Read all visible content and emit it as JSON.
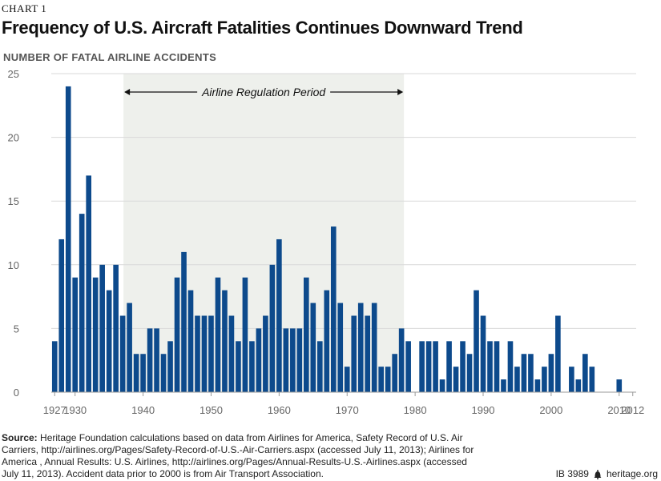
{
  "chart_label": "CHART 1",
  "title": "Frequency of U.S. Aircraft Fatalities Continues Downward Trend",
  "subtitle": "NUMBER OF FATAL AIRLINE ACCIDENTS",
  "source_label": "Source:",
  "source_text": "Heritage Foundation calculations based on data from Airlines for America, Safety Record of U.S. Air Carriers, http://airlines.org/Pages/Safety-Record-of-U.S.-Air-Carriers.aspx (accessed July 11, 2013); Airlines for America , Annual Results: U.S. Airlines, http://airlines.org/Pages/Annual-Results-U.S.-Airlines.aspx (accessed July 11, 2013). Accident data prior to 2000 is from Air Transport Association.",
  "issue": "IB 3989",
  "site": "heritage.org",
  "chart_data": {
    "type": "bar",
    "title": "Frequency of U.S. Aircraft Fatalities Continues Downward Trend",
    "ylabel": "NUMBER OF FATAL AIRLINE ACCIDENTS",
    "xlabel": "",
    "ylim": [
      0,
      25
    ],
    "yticks": [
      "0",
      "5",
      "10",
      "15",
      "20",
      "25"
    ],
    "xtick_labels": [
      "1927",
      "1930",
      "1940",
      "1950",
      "1960",
      "1970",
      "1980",
      "1990",
      "2000",
      "2010",
      "2012"
    ],
    "grid": true,
    "bar_color": "#0d4a8c",
    "shade_color": "#eef0ec",
    "annotation": {
      "label": "Airline Regulation Period",
      "from": 1938,
      "to": 1978
    },
    "x": [
      1927,
      1928,
      1929,
      1930,
      1931,
      1932,
      1933,
      1934,
      1935,
      1936,
      1937,
      1938,
      1939,
      1940,
      1941,
      1942,
      1943,
      1944,
      1945,
      1946,
      1947,
      1948,
      1949,
      1950,
      1951,
      1952,
      1953,
      1954,
      1955,
      1956,
      1957,
      1958,
      1959,
      1960,
      1961,
      1962,
      1963,
      1964,
      1965,
      1966,
      1967,
      1968,
      1969,
      1970,
      1971,
      1972,
      1973,
      1974,
      1975,
      1976,
      1977,
      1978,
      1979,
      1980,
      1981,
      1982,
      1983,
      1984,
      1985,
      1986,
      1987,
      1988,
      1989,
      1990,
      1991,
      1992,
      1993,
      1994,
      1995,
      1996,
      1997,
      1998,
      1999,
      2000,
      2001,
      2002,
      2003,
      2004,
      2005,
      2006,
      2007,
      2008,
      2009,
      2010,
      2011,
      2012
    ],
    "values": [
      4,
      12,
      24,
      9,
      14,
      17,
      9,
      10,
      8,
      10,
      6,
      7,
      3,
      3,
      5,
      5,
      3,
      4,
      9,
      11,
      8,
      6,
      6,
      6,
      9,
      8,
      6,
      4,
      9,
      4,
      5,
      6,
      10,
      12,
      5,
      5,
      5,
      9,
      7,
      4,
      8,
      13,
      7,
      2,
      6,
      7,
      6,
      7,
      2,
      2,
      3,
      5,
      4,
      0,
      4,
      4,
      4,
      1,
      4,
      2,
      4,
      3,
      8,
      6,
      4,
      4,
      1,
      4,
      2,
      3,
      3,
      1,
      2,
      3,
      6,
      0,
      2,
      1,
      3,
      2,
      0,
      0,
      0,
      1,
      0,
      0
    ]
  }
}
